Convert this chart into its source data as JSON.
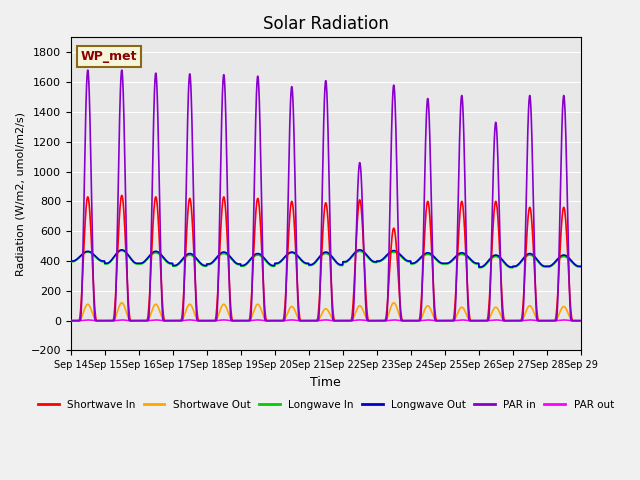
{
  "title": "Solar Radiation",
  "ylabel": "Radiation (W/m2, umol/m2/s)",
  "xlabel": "Time",
  "ylim": [
    -200,
    1900
  ],
  "yticks": [
    -200,
    0,
    200,
    400,
    600,
    800,
    1000,
    1200,
    1400,
    1600,
    1800
  ],
  "xtick_labels": [
    "Sep 14",
    "Sep 15",
    "Sep 16",
    "Sep 17",
    "Sep 18",
    "Sep 19",
    "Sep 20",
    "Sep 21",
    "Sep 22",
    "Sep 23",
    "Sep 24",
    "Sep 25",
    "Sep 26",
    "Sep 27",
    "Sep 28",
    "Sep 29"
  ],
  "station_label": "WP_met",
  "colors": {
    "shortwave_in": "#ff0000",
    "shortwave_out": "#ffa500",
    "longwave_in": "#00cc00",
    "longwave_out": "#0000cc",
    "par_in": "#8800cc",
    "par_out": "#ff00ff"
  },
  "legend_labels": [
    "Shortwave In",
    "Shortwave Out",
    "Longwave In",
    "Longwave Out",
    "PAR in",
    "PAR out"
  ],
  "bg_color": "#e8e8e8",
  "n_days": 15,
  "points_per_day": 144,
  "shortwave_in_peaks": [
    830,
    840,
    830,
    820,
    830,
    820,
    800,
    790,
    810,
    620,
    800,
    800,
    800,
    760,
    760
  ],
  "shortwave_out_peaks": [
    110,
    120,
    110,
    110,
    110,
    110,
    95,
    80,
    100,
    120,
    100,
    90,
    90,
    100,
    95
  ],
  "longwave_in_baseline": [
    395,
    380,
    380,
    365,
    375,
    365,
    380,
    370,
    390,
    395,
    380,
    380,
    355,
    360,
    360
  ],
  "longwave_in_peak": [
    460,
    470,
    455,
    440,
    450,
    440,
    455,
    450,
    465,
    460,
    445,
    445,
    430,
    440,
    430
  ],
  "longwave_out_baseline": [
    400,
    385,
    385,
    370,
    380,
    370,
    385,
    375,
    395,
    400,
    385,
    385,
    360,
    365,
    365
  ],
  "longwave_out_peak": [
    465,
    475,
    465,
    450,
    460,
    450,
    460,
    460,
    475,
    470,
    455,
    455,
    440,
    450,
    440
  ],
  "par_in_peaks": [
    1680,
    1680,
    1660,
    1655,
    1650,
    1640,
    1570,
    1610,
    1060,
    1580,
    1490,
    1510,
    1330,
    1510,
    1510
  ],
  "par_out_peaks": [
    5,
    5,
    5,
    5,
    5,
    5,
    5,
    5,
    5,
    5,
    5,
    5,
    5,
    5,
    5
  ]
}
